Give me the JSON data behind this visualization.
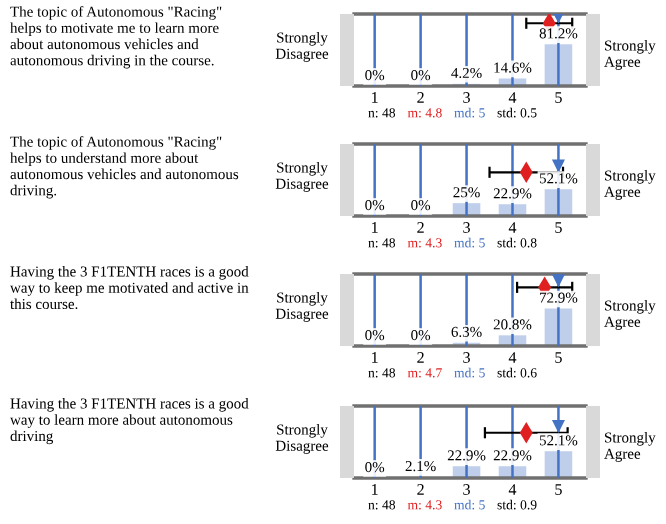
{
  "chart_data": [
    {
      "type": "bar",
      "x": [
        1,
        2,
        3,
        4,
        5
      ],
      "xlim": [
        0.55,
        5.6
      ],
      "xticks": [
        1,
        2,
        3,
        4,
        5
      ],
      "ylim": [
        0,
        140
      ],
      "tick_labels": "x",
      "grid": "x",
      "annotations": [
        "The topic of Autonomous \"Racing\" helps to motivate me to learn more about autonomous vehicles and autonomous driving in the course.",
        "Strongly Disagree",
        "Strongly Agree",
        "n: 48",
        "std: 0.5"
      ],
      "series": [
        {
          "color": "#b4c7e7",
          "values": [
            0,
            0,
            4.2,
            14.6,
            81.2
          ],
          "value_labels": [
            "0%",
            "0%",
            "4.2%",
            "14.6%",
            "81.2%"
          ]
        },
        {
          "type": "scatter",
          "name": "m: 4.8",
          "color": "#e02020",
          "marker": "diamond",
          "x": [
            4.8
          ],
          "values": [
            122
          ],
          "xerrors": [
            0.5
          ]
        },
        {
          "type": "scatter",
          "name": "md: 5",
          "color": "#4472c4",
          "marker": "triangle",
          "x": [
            5
          ],
          "values": [
            134
          ]
        }
      ]
    },
    {
      "type": "bar",
      "x": [
        1,
        2,
        3,
        4,
        5
      ],
      "xlim": [
        0.55,
        5.6
      ],
      "xticks": [
        1,
        2,
        3,
        4,
        5
      ],
      "ylim": [
        0,
        140
      ],
      "tick_labels": "x",
      "grid": "x",
      "annotations": [
        "The topic of Autonomous \"Racing\" helps to understand more about autonomous vehicles and autonomous driving.",
        "Strongly Disagree",
        "Strongly Agree",
        "n: 48",
        "std: 0.8"
      ],
      "series": [
        {
          "color": "#b4c7e7",
          "values": [
            0,
            0,
            25,
            22.9,
            52.1
          ],
          "value_labels": [
            "0%",
            "0%",
            "25%",
            "22.9%",
            "52.1%"
          ]
        },
        {
          "type": "scatter",
          "name": "m: 4.3",
          "color": "#e02020",
          "marker": "diamond",
          "x": [
            4.3
          ],
          "values": [
            85
          ],
          "xerrors": [
            0.8
          ]
        },
        {
          "type": "scatter",
          "name": "md: 5",
          "color": "#4472c4",
          "marker": "triangle",
          "x": [
            5
          ],
          "values": [
            97
          ]
        }
      ]
    },
    {
      "type": "bar",
      "x": [
        1,
        2,
        3,
        4,
        5
      ],
      "xlim": [
        0.55,
        5.6
      ],
      "xticks": [
        1,
        2,
        3,
        4,
        5
      ],
      "ylim": [
        0,
        140
      ],
      "tick_labels": "x",
      "grid": "x",
      "annotations": [
        "Having the 3 F1TENTH races is a good way to keep me motivated and active in this course.",
        "Strongly Disagree",
        "Strongly Agree",
        "n: 48",
        "std: 0.6"
      ],
      "series": [
        {
          "color": "#b4c7e7",
          "values": [
            0,
            0,
            6.3,
            20.8,
            72.9
          ],
          "value_labels": [
            "0%",
            "0%",
            "6.3%",
            "20.8%",
            "72.9%"
          ]
        },
        {
          "type": "scatter",
          "name": "m: 4.7",
          "color": "#e02020",
          "marker": "diamond",
          "x": [
            4.7
          ],
          "values": [
            114
          ],
          "xerrors": [
            0.6
          ]
        },
        {
          "type": "scatter",
          "name": "md: 5",
          "color": "#4472c4",
          "marker": "triangle",
          "x": [
            5
          ],
          "values": [
            127
          ]
        }
      ]
    },
    {
      "type": "bar",
      "x": [
        1,
        2,
        3,
        4,
        5
      ],
      "xlim": [
        0.55,
        5.6
      ],
      "xticks": [
        1,
        2,
        3,
        4,
        5
      ],
      "ylim": [
        0,
        140
      ],
      "tick_labels": "x",
      "grid": "x",
      "annotations": [
        "Having the 3 F1TENTH races is a good way to learn more about autonomous driving",
        "Strongly Disagree",
        "Strongly Agree",
        "n: 48",
        "std: 0.9"
      ],
      "series": [
        {
          "color": "#b4c7e7",
          "values": [
            0,
            2.1,
            22.9,
            22.9,
            52.1
          ],
          "value_labels": [
            "0%",
            "2.1%",
            "22.9%",
            "22.9%",
            "52.1%"
          ]
        },
        {
          "type": "scatter",
          "name": "m: 4.3",
          "color": "#e02020",
          "marker": "diamond",
          "x": [
            4.3
          ],
          "values": [
            88
          ],
          "xerrors": [
            0.9
          ]
        },
        {
          "type": "scatter",
          "name": "md: 5",
          "color": "#4472c4",
          "marker": "triangle",
          "x": [
            5
          ],
          "values": [
            100
          ]
        }
      ]
    }
  ]
}
